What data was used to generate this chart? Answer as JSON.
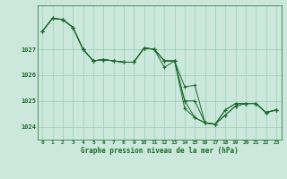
{
  "xlabel": "Graphe pression niveau de la mer (hPa)",
  "background_color": "#cce8dc",
  "plot_bg_color": "#cce8dc",
  "grid_color": "#99ccb8",
  "line_color": "#1a6b2a",
  "ylim": [
    1023.5,
    1028.7
  ],
  "xlim": [
    -0.5,
    23.5
  ],
  "yticks": [
    1024,
    1025,
    1026,
    1027
  ],
  "xticks": [
    0,
    1,
    2,
    3,
    4,
    5,
    6,
    7,
    8,
    9,
    10,
    11,
    12,
    13,
    14,
    15,
    16,
    17,
    18,
    19,
    20,
    21,
    22,
    23
  ],
  "series": [
    [
      1027.7,
      1028.2,
      1028.15,
      1027.85,
      1027.0,
      1026.55,
      1026.6,
      1026.55,
      1026.5,
      1026.5,
      1027.05,
      1027.0,
      1026.55,
      1026.55,
      1025.0,
      1025.0,
      1024.15,
      1024.1,
      1024.65,
      1024.9,
      1024.9,
      1024.9,
      1024.55,
      1024.65
    ],
    [
      1027.7,
      1028.2,
      1028.15,
      1027.85,
      1027.0,
      1026.55,
      1026.6,
      1026.55,
      1026.5,
      1026.5,
      1027.05,
      1027.0,
      1026.3,
      1026.55,
      1025.55,
      1025.6,
      1024.15,
      1024.1,
      1024.65,
      1024.9,
      1024.9,
      1024.9,
      1024.55,
      1024.65
    ],
    [
      1027.7,
      1028.2,
      1028.15,
      1027.85,
      1027.0,
      1026.55,
      1026.6,
      1026.55,
      1026.5,
      1026.5,
      1027.05,
      1027.0,
      1026.55,
      1026.55,
      1025.0,
      1024.35,
      1024.15,
      1024.1,
      1024.45,
      1024.8,
      1024.9,
      1024.9,
      1024.55,
      1024.65
    ],
    [
      1027.7,
      1028.2,
      1028.15,
      1027.85,
      1027.0,
      1026.55,
      1026.6,
      1026.55,
      1026.5,
      1026.5,
      1027.05,
      1027.0,
      1026.55,
      1026.55,
      1024.7,
      1024.35,
      1024.15,
      1024.1,
      1024.45,
      1024.8,
      1024.9,
      1024.9,
      1024.55,
      1024.65
    ]
  ]
}
